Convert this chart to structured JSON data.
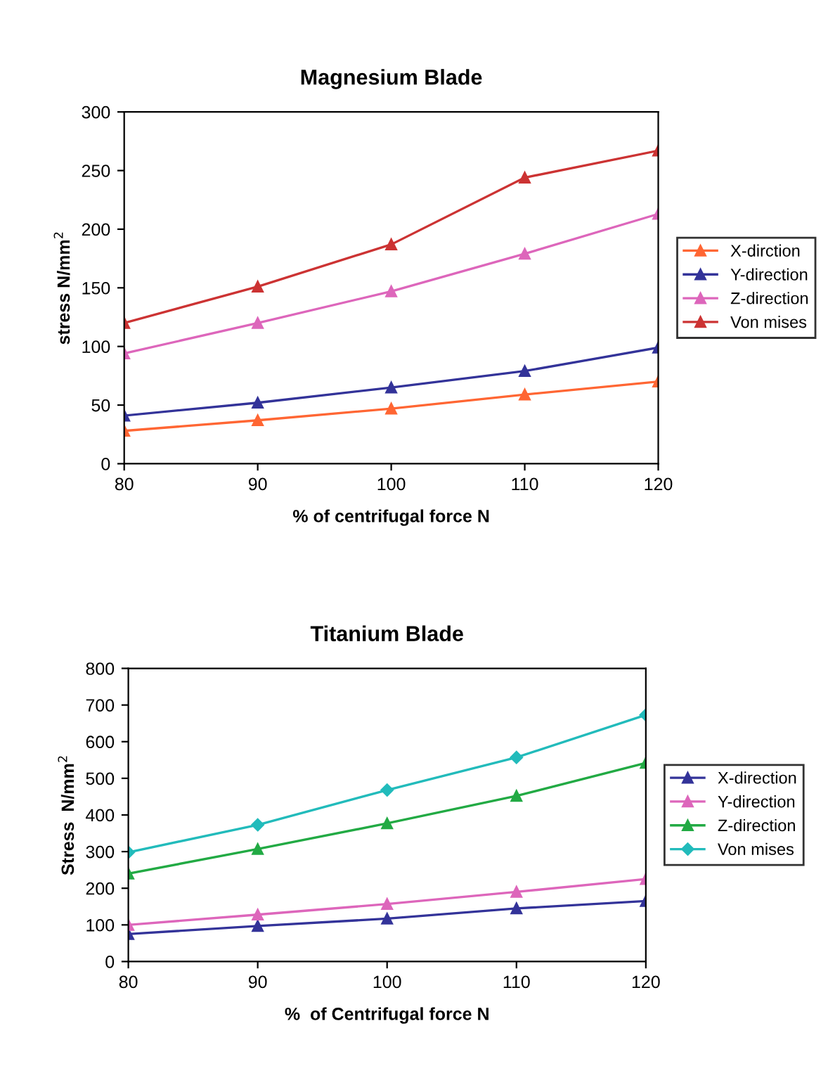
{
  "chart_data": [
    {
      "type": "line",
      "title": "Magnesium Blade",
      "xlabel": "% of centrifugal force N",
      "ylabel": "stress N/mm$^{2}$",
      "x": [
        80,
        90,
        100,
        110,
        120
      ],
      "xlim": [
        80,
        120
      ],
      "xticks": [
        80,
        90,
        100,
        110,
        120
      ],
      "ylim": [
        0,
        300
      ],
      "yticks": [
        0,
        50,
        100,
        150,
        200,
        250,
        300
      ],
      "grid": false,
      "legend": "right",
      "marker": "triangle",
      "series": [
        {
          "name": "X-dirction",
          "color": "#ff6633",
          "values": [
            28,
            37,
            47,
            59,
            70
          ]
        },
        {
          "name": "Y-direction",
          "color": "#333399",
          "values": [
            41,
            52,
            65,
            79,
            99
          ]
        },
        {
          "name": "Z-direction",
          "color": "#dd66bb",
          "values": [
            94,
            120,
            147,
            179,
            213
          ]
        },
        {
          "name": "Von mises",
          "color": "#cc3333",
          "values": [
            120,
            151,
            187,
            244,
            267
          ]
        }
      ]
    },
    {
      "type": "line",
      "title": "Titanium Blade",
      "xlabel": "%  of Centrifugal force N",
      "ylabel": "Stress  N/mm$^{2}$",
      "x": [
        80,
        90,
        100,
        110,
        120
      ],
      "xlim": [
        80,
        120
      ],
      "xticks": [
        80,
        90,
        100,
        110,
        120
      ],
      "ylim": [
        0,
        800
      ],
      "yticks": [
        0,
        100,
        200,
        300,
        400,
        500,
        600,
        700,
        800
      ],
      "grid": false,
      "legend": "right",
      "marker": "triangle",
      "series": [
        {
          "name": "X-direction",
          "color": "#333399",
          "values": [
            75,
            97,
            117,
            145,
            165
          ]
        },
        {
          "name": "Y-direction",
          "color": "#dd66bb",
          "values": [
            100,
            128,
            157,
            190,
            225
          ]
        },
        {
          "name": "Z-direction",
          "color": "#22aa44",
          "values": [
            240,
            307,
            377,
            452,
            542
          ]
        },
        {
          "name": "Von mises",
          "color": "#22bbbb",
          "marker": "diamond",
          "values": [
            298,
            373,
            468,
            557,
            673
          ]
        }
      ]
    }
  ]
}
